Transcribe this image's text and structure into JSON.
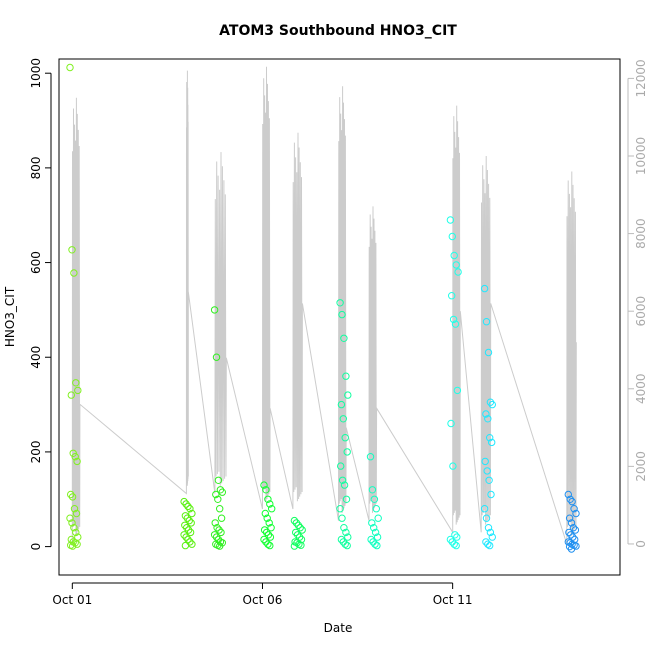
{
  "chart_data": {
    "type": "scatter",
    "title": "ATOM3 Southbound HNO3_CIT",
    "xlabel": "Date",
    "ylabel": "HNO3_CIT",
    "x_ticks": [
      {
        "label": "Oct 01",
        "day": 1
      },
      {
        "label": "Oct 06",
        "day": 6
      },
      {
        "label": "Oct 11",
        "day": 11
      }
    ],
    "xlim_days": [
      0.65,
      15.4
    ],
    "ylim": [
      -60,
      1030
    ],
    "y_ticks": [
      0,
      200,
      400,
      600,
      800,
      1000
    ],
    "y2lim": [
      -800,
      12500
    ],
    "y2_ticks": [
      0,
      2000,
      4000,
      6000,
      8000,
      10000,
      12000
    ],
    "y2_color": "#bbbbbb",
    "line_color": "#cccccc",
    "point_color_gradient": [
      "#7fff00",
      "#00ff00",
      "#00ffbf",
      "#00ffff",
      "#1e90ff"
    ],
    "flights": [
      {
        "day": 1.0,
        "color": "#80f020",
        "points": [
          1012,
          627,
          578,
          346,
          330,
          320,
          197,
          190,
          180,
          110,
          105,
          80,
          70,
          60,
          50,
          40,
          30,
          20,
          15,
          10,
          8,
          5,
          3,
          1
        ]
      },
      {
        "day": 4.0,
        "color": "#5af010",
        "points": [
          95,
          90,
          85,
          80,
          70,
          65,
          60,
          55,
          50,
          45,
          40,
          35,
          30,
          25,
          20,
          15,
          10,
          5,
          2
        ]
      },
      {
        "day": 4.8,
        "color": "#30f020",
        "points": [
          500,
          400,
          140,
          120,
          115,
          110,
          100,
          80,
          60,
          50,
          40,
          35,
          30,
          25,
          20,
          15,
          10,
          8,
          5,
          3,
          1
        ]
      },
      {
        "day": 6.1,
        "color": "#10ff30",
        "points": [
          130,
          120,
          100,
          90,
          80,
          70,
          60,
          50,
          40,
          35,
          30,
          25,
          20,
          15,
          10,
          5,
          2
        ]
      },
      {
        "day": 6.9,
        "color": "#10ff60",
        "points": [
          55,
          50,
          45,
          40,
          35,
          30,
          25,
          20,
          15,
          10,
          8,
          5,
          3,
          1
        ]
      },
      {
        "day": 8.1,
        "color": "#10ffa0",
        "points": [
          515,
          490,
          440,
          360,
          320,
          300,
          270,
          230,
          200,
          170,
          140,
          130,
          100,
          80,
          60,
          40,
          30,
          20,
          15,
          10,
          5,
          2
        ]
      },
      {
        "day": 8.9,
        "color": "#10ffc0",
        "points": [
          190,
          120,
          100,
          80,
          60,
          50,
          40,
          30,
          20,
          15,
          10,
          5,
          2
        ]
      },
      {
        "day": 11.0,
        "color": "#20ffe8",
        "points": [
          690,
          655,
          615,
          595,
          580,
          530,
          480,
          470,
          330,
          260,
          170,
          25,
          20,
          15,
          10,
          5,
          2
        ]
      },
      {
        "day": 11.9,
        "color": "#20e8ff",
        "points": [
          545,
          475,
          410,
          305,
          300,
          280,
          270,
          230,
          220,
          180,
          160,
          140,
          110,
          80,
          60,
          40,
          30,
          20,
          10,
          5,
          2
        ]
      },
      {
        "day": 14.1,
        "color": "#2090f0",
        "points": [
          110,
          100,
          95,
          80,
          70,
          60,
          50,
          40,
          35,
          30,
          25,
          20,
          15,
          10,
          8,
          5,
          3,
          1,
          0,
          -5
        ]
      }
    ],
    "altitude_line": {
      "series_axis": "y2",
      "segments": [
        {
          "from": 1.0,
          "to": 1.2,
          "peak": 11500,
          "base": 3600,
          "start": 0
        },
        {
          "from": 4.0,
          "to": 4.05,
          "peak": 12200,
          "base": 6500,
          "start": 1300
        },
        {
          "from": 4.75,
          "to": 5.05,
          "peak": 10100,
          "base": 4800,
          "start": 1300
        },
        {
          "from": 6.0,
          "to": 6.2,
          "peak": 12300,
          "base": 3500,
          "start": 900
        },
        {
          "from": 6.8,
          "to": 7.05,
          "peak": 10600,
          "base": 6200,
          "start": 900
        },
        {
          "from": 8.0,
          "to": 8.2,
          "peak": 11800,
          "base": 3000,
          "start": 600
        },
        {
          "from": 8.8,
          "to": 9.0,
          "peak": 8700,
          "base": 3500,
          "start": 600
        },
        {
          "from": 11.0,
          "to": 11.2,
          "peak": 11300,
          "base": 6000,
          "start": 300
        },
        {
          "from": 11.75,
          "to": 12.0,
          "peak": 10000,
          "base": 6200,
          "start": 300
        },
        {
          "from": 14.0,
          "to": 14.25,
          "peak": 9600,
          "base": 5200,
          "start": 0
        }
      ]
    },
    "grid": false,
    "legend": "none"
  }
}
